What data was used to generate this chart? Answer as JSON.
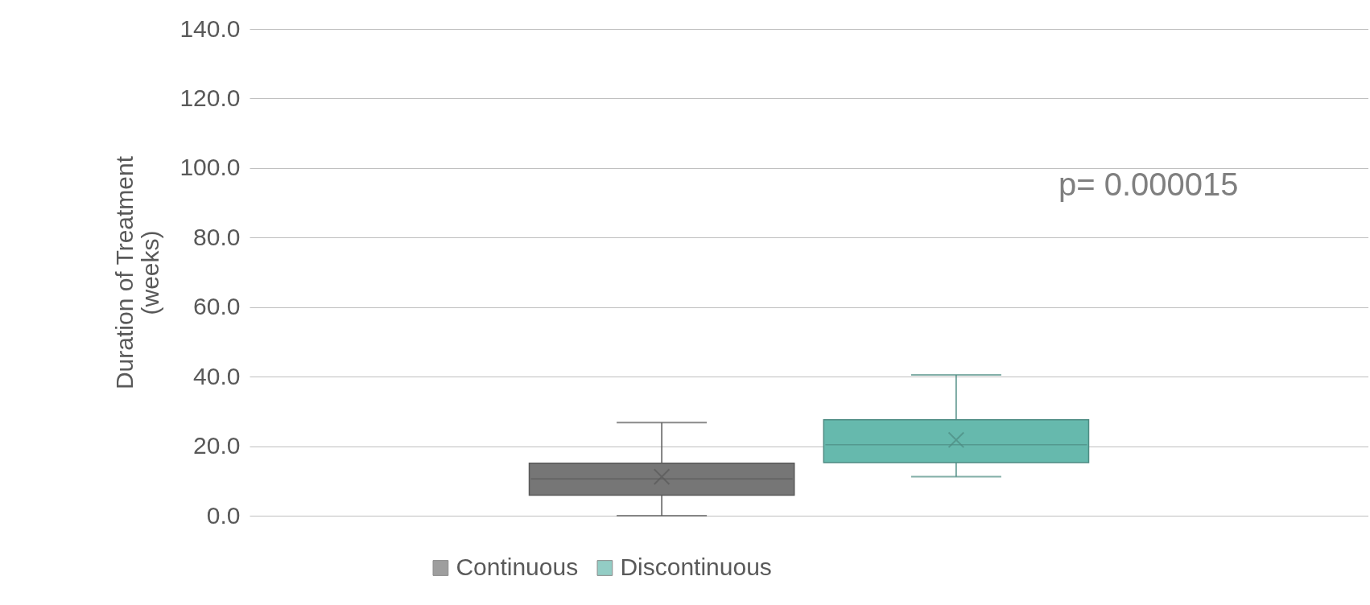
{
  "chart_data": {
    "type": "box",
    "ylabel": "Duration of Treatment\n(weeks)",
    "categories": [
      null
    ],
    "series": [
      {
        "name": "Continuous",
        "color": "#767676",
        "boxes": [
          {
            "low": 0,
            "q1": 5.9,
            "median": 10.6,
            "q3": 15.1,
            "high": 26.8,
            "mean": 11.2
          }
        ]
      },
      {
        "name": "Discontinuous",
        "color": "#66b9ad",
        "boxes": [
          {
            "low": 11.2,
            "q1": 15.3,
            "median": 20.4,
            "q3": 27.6,
            "high": 40.5,
            "mean": 21.8
          }
        ]
      }
    ],
    "ylim": [
      0,
      140
    ],
    "yticks": [
      {
        "value": 0,
        "label": "0.0"
      },
      {
        "value": 20,
        "label": "20.0"
      },
      {
        "value": 40,
        "label": "40.0"
      },
      {
        "value": 60,
        "label": "60.0"
      },
      {
        "value": 80,
        "label": "80.0"
      },
      {
        "value": 100,
        "label": "100.0"
      },
      {
        "value": 120,
        "label": "120.0"
      },
      {
        "value": 140,
        "label": "140.0"
      }
    ],
    "grid": "y",
    "legend": "bottom",
    "tick_labels": "y",
    "annotations": [
      "p= 0.000015"
    ]
  }
}
